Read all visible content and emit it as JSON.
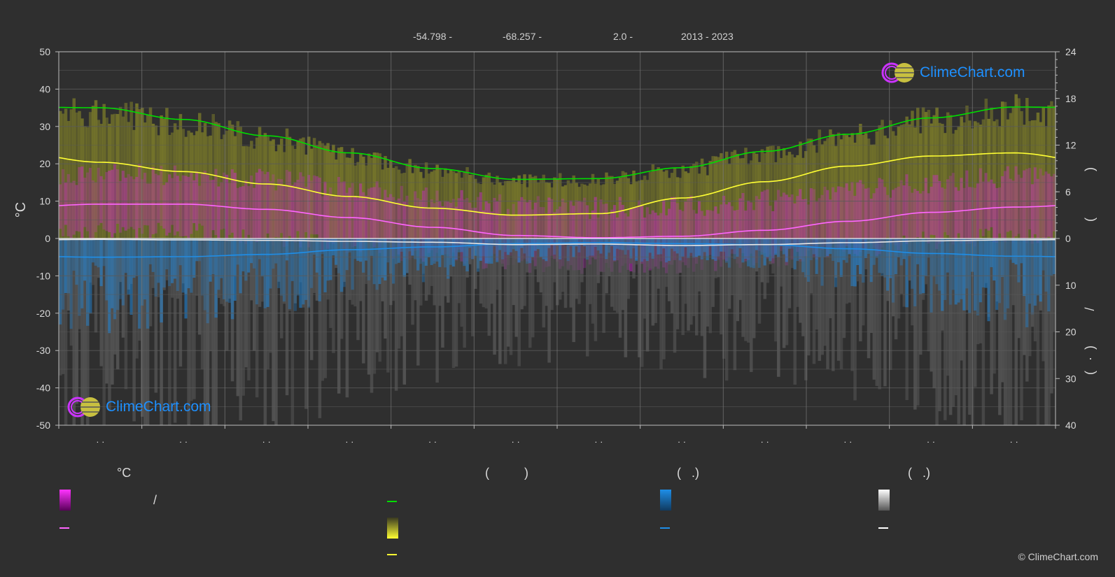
{
  "header": {
    "lat": "-54.798 -",
    "lon": "-68.257 -",
    "elev": "2.0 -",
    "years": "2013 - 2023"
  },
  "brand": "ClimeChart.com",
  "copyright": "© ClimeChart.com",
  "colors": {
    "background": "#2f2f2f",
    "daylight": "#00dd00",
    "sunshine": "#ffff33",
    "temp_mean": "#ff66ff",
    "temp_band": "#dd22dd",
    "rain": "#1e8ee8",
    "snow": "#ffffff",
    "grid": "#5a5a5a"
  },
  "axes": {
    "left_label": "°C",
    "left_ticks": [
      50,
      40,
      30,
      20,
      10,
      0,
      -10,
      -20,
      -30,
      -40,
      -50
    ],
    "right_top_ticks": [
      24,
      18,
      12,
      6,
      0
    ],
    "right_bottom_ticks": [
      10,
      20,
      30,
      40
    ],
    "right_top_label_glyphs": [
      ")",
      "("
    ],
    "right_bottom_label_glyphs": [
      "/",
      ")",
      "·",
      "("
    ],
    "month_labels": [
      "· ·",
      "· ·",
      "· ·",
      "· ·",
      "· ·",
      "· ·",
      "· ·",
      "· ·",
      "· ·",
      "· ·",
      "· ·",
      "· ·"
    ]
  },
  "legend": {
    "heads": {
      "temperature": "°C",
      "sun": "(          )",
      "rain": "(   .)",
      "snow": "(   .)"
    },
    "temp_range_text": "/"
  },
  "chart_data": {
    "type": "area",
    "months": 12,
    "ylim_left": [
      -50,
      50
    ],
    "ylim_right_hours": [
      0,
      24
    ],
    "ylim_right_precip_mm": [
      0,
      40
    ],
    "grid": true,
    "series": [
      {
        "key": "daylight_hours",
        "axis": "right_hours",
        "values": [
          16.8,
          15.3,
          13.2,
          11.0,
          9.0,
          7.6,
          7.7,
          9.1,
          11.2,
          13.4,
          15.5,
          16.9
        ]
      },
      {
        "key": "sunshine_hours",
        "axis": "right_hours",
        "values": [
          9.8,
          8.6,
          7.0,
          5.4,
          3.9,
          3.0,
          3.2,
          5.2,
          7.3,
          9.3,
          10.6,
          11.0
        ]
      },
      {
        "key": "temp_mean",
        "axis": "left",
        "values": [
          9.2,
          9.2,
          7.8,
          5.6,
          3.0,
          0.8,
          0.2,
          0.6,
          2.2,
          4.6,
          7.0,
          8.4
        ]
      },
      {
        "key": "rain_mean_mm",
        "axis": "right_precip",
        "values": [
          4.0,
          3.9,
          3.4,
          2.4,
          1.8,
          1.1,
          0.9,
          1.1,
          1.3,
          2.2,
          3.2,
          3.8
        ]
      },
      {
        "key": "snow_mean_mm",
        "axis": "right_precip",
        "values": [
          0.2,
          0.3,
          0.4,
          0.6,
          0.8,
          1.3,
          1.2,
          1.5,
          1.3,
          0.9,
          0.5,
          0.3
        ]
      }
    ]
  }
}
